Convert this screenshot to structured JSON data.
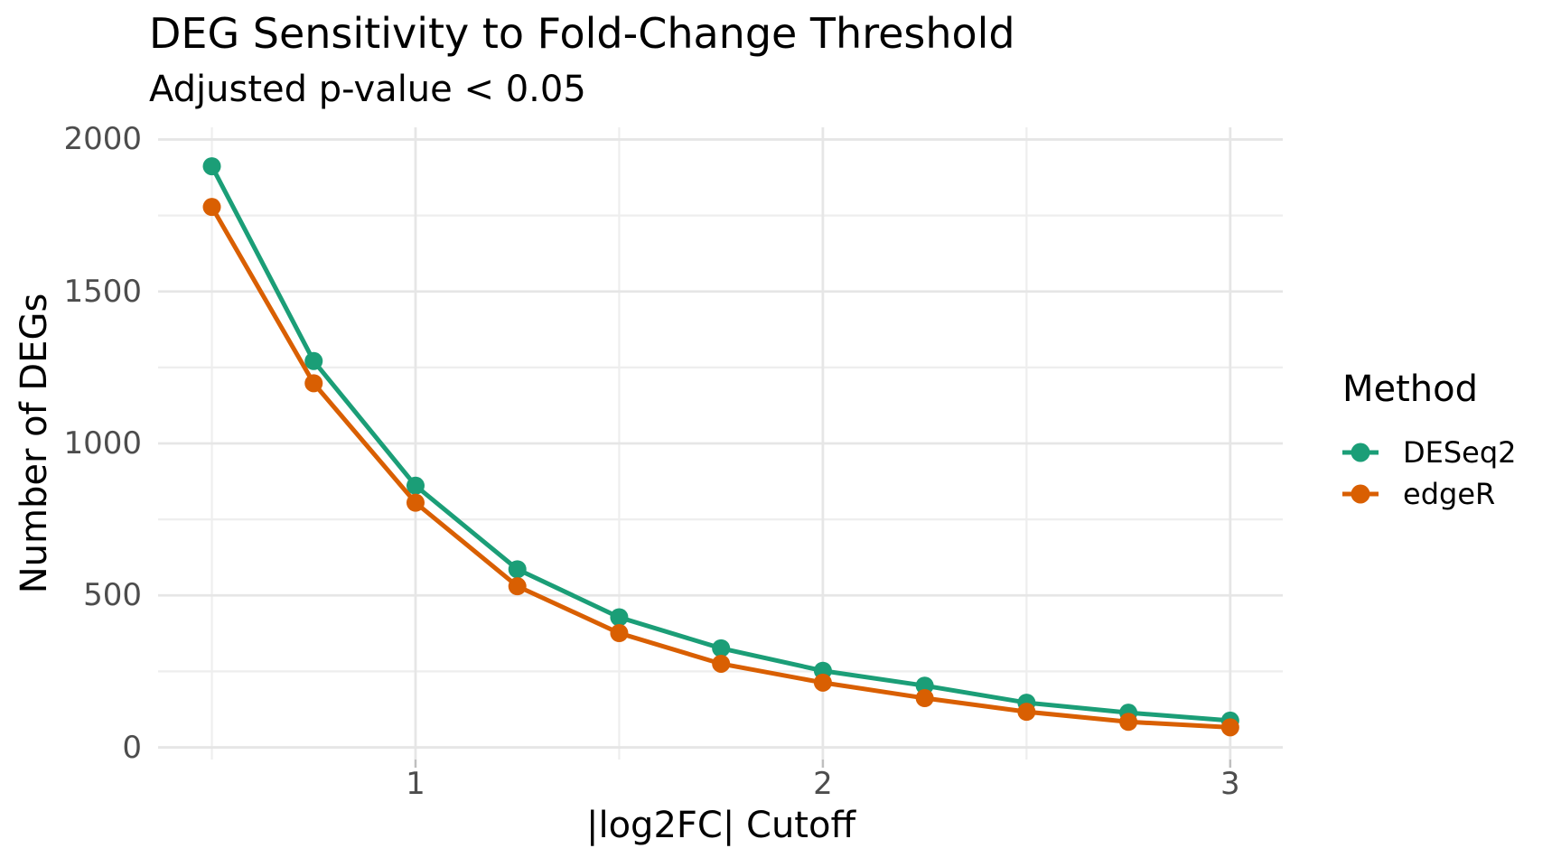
{
  "chart_data": {
    "type": "line",
    "title": "DEG Sensitivity to Fold-Change Threshold",
    "subtitle": "Adjusted p-value < 0.05",
    "xlabel": "|log2FC| Cutoff",
    "ylabel": "Number of DEGs",
    "x": [
      0.5,
      0.75,
      1.0,
      1.25,
      1.5,
      1.75,
      2.0,
      2.25,
      2.5,
      2.75,
      3.0
    ],
    "series": [
      {
        "name": "DESeq2",
        "color": "#1b9e77",
        "values": [
          1912,
          1271,
          861,
          586,
          428,
          326,
          252,
          203,
          147,
          114,
          88
        ]
      },
      {
        "name": "edgeR",
        "color": "#d95f02",
        "values": [
          1778,
          1198,
          805,
          530,
          376,
          275,
          213,
          162,
          117,
          84,
          66
        ]
      }
    ],
    "legend": {
      "title": "Method",
      "position": "right"
    },
    "axes": {
      "x_ticks": [
        1,
        2,
        3
      ],
      "x_minor": [
        0.5,
        1.5,
        2.5
      ],
      "y_ticks": [
        0,
        500,
        1000,
        1500,
        2000
      ],
      "y_minor": [
        250,
        750,
        1250,
        1750
      ],
      "x_domain": [
        0.368,
        3.129
      ],
      "y_domain": [
        -40,
        2040
      ],
      "grid": true
    },
    "style": {
      "grid_major_color": "#e6e6e6",
      "grid_minor_color": "#eeeeee",
      "tick_mark_color": "#bfbfbf",
      "tick_label_color": "#4d4d4d",
      "text_color": "#000000",
      "line_width": 5,
      "point_radius": 10
    }
  }
}
